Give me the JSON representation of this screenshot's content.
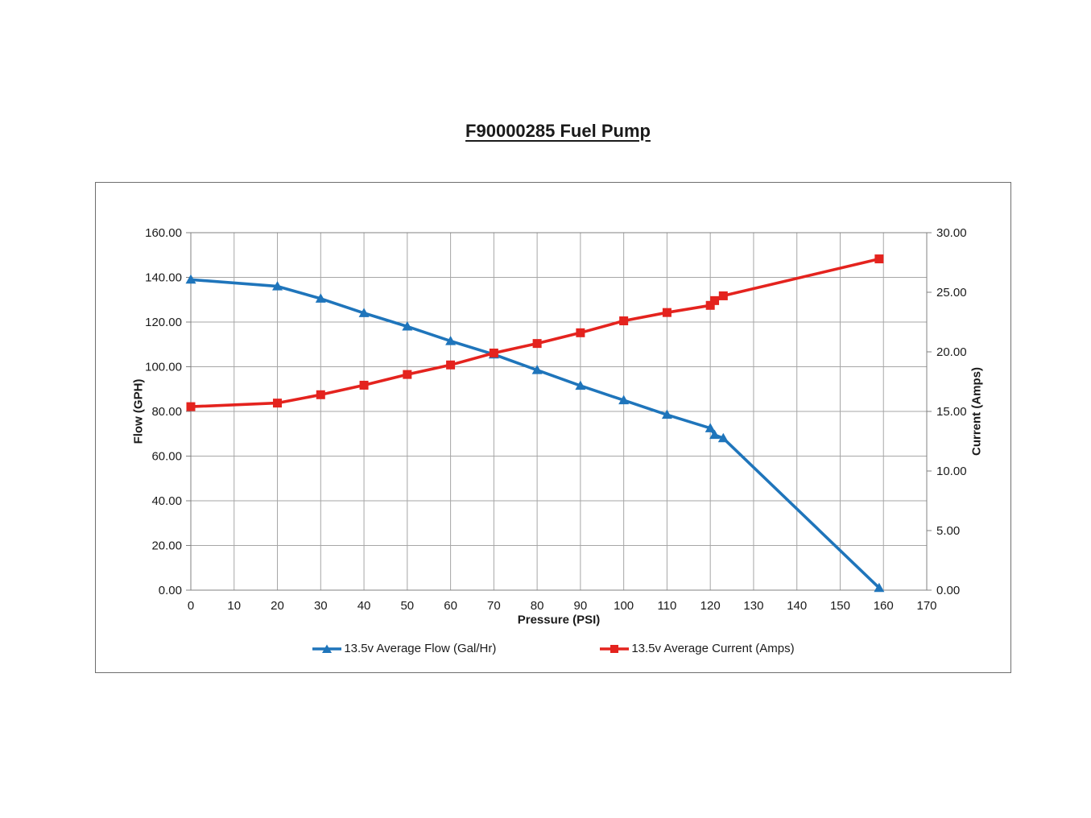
{
  "page": {
    "title": "F90000285 Fuel Pump"
  },
  "chart_data": {
    "type": "line",
    "title": "F90000285 Fuel Pump",
    "xlabel": "Pressure (PSI)",
    "ylabel_left": "Flow (GPH)",
    "ylabel_right": "Current (Amps)",
    "x_range": [
      0,
      170
    ],
    "x_step": 10,
    "y_left_range": [
      0,
      160
    ],
    "y_left_step": 20,
    "y_right_range": [
      0,
      30
    ],
    "y_right_step": 5,
    "grid": true,
    "legend_position": "bottom",
    "colors": {
      "gridline": "#a6a6a6",
      "plot_border": "#808080",
      "tick": "#808080",
      "label_text": "#1a1a1a"
    },
    "series": [
      {
        "name": "13.5v Average Flow (Gal/Hr)",
        "axis": "left",
        "color": "#1f75bb",
        "marker": "triangle",
        "points": [
          [
            0,
            139
          ],
          [
            20,
            136
          ],
          [
            30,
            130.5
          ],
          [
            40,
            124
          ],
          [
            50,
            118
          ],
          [
            60,
            111.5
          ],
          [
            70,
            105.5
          ],
          [
            80,
            98.5
          ],
          [
            90,
            91.5
          ],
          [
            100,
            85
          ],
          [
            110,
            78.5
          ],
          [
            120,
            72.5
          ],
          [
            121,
            69.5
          ],
          [
            123,
            68
          ],
          [
            159,
            1
          ]
        ]
      },
      {
        "name": "13.5v Average Current (Amps)",
        "axis": "right",
        "color": "#e4231e",
        "marker": "square",
        "points": [
          [
            0,
            15.4
          ],
          [
            20,
            15.7
          ],
          [
            30,
            16.4
          ],
          [
            40,
            17.2
          ],
          [
            50,
            18.1
          ],
          [
            60,
            18.9
          ],
          [
            70,
            19.9
          ],
          [
            80,
            20.7
          ],
          [
            90,
            21.6
          ],
          [
            100,
            22.6
          ],
          [
            110,
            23.3
          ],
          [
            120,
            23.9
          ],
          [
            121,
            24.3
          ],
          [
            123,
            24.7
          ],
          [
            159,
            27.8
          ]
        ]
      }
    ]
  }
}
